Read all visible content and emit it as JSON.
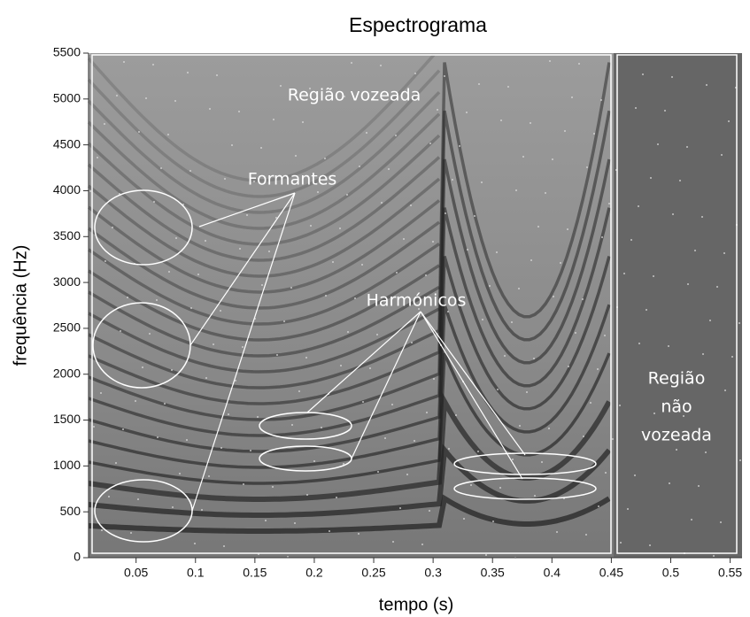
{
  "chart_data": {
    "type": "spectrogram",
    "title": "Espectrograma",
    "x_label": "tempo (s)",
    "y_label": "frequência (Hz)",
    "xlim": [
      0.01,
      0.56
    ],
    "xticks": [
      0.05,
      0.1,
      0.15,
      0.2,
      0.25,
      0.3,
      0.35,
      0.4,
      0.45,
      0.5,
      0.55
    ],
    "ylim": [
      0,
      5500
    ],
    "yticks": [
      0,
      500,
      1000,
      1500,
      2000,
      2500,
      3000,
      3500,
      4000,
      4500,
      5000,
      5500
    ],
    "annotations": [
      "Região vozeada",
      "Formantes",
      "Harmónicos",
      "Região",
      "não",
      "vozeada"
    ]
  }
}
